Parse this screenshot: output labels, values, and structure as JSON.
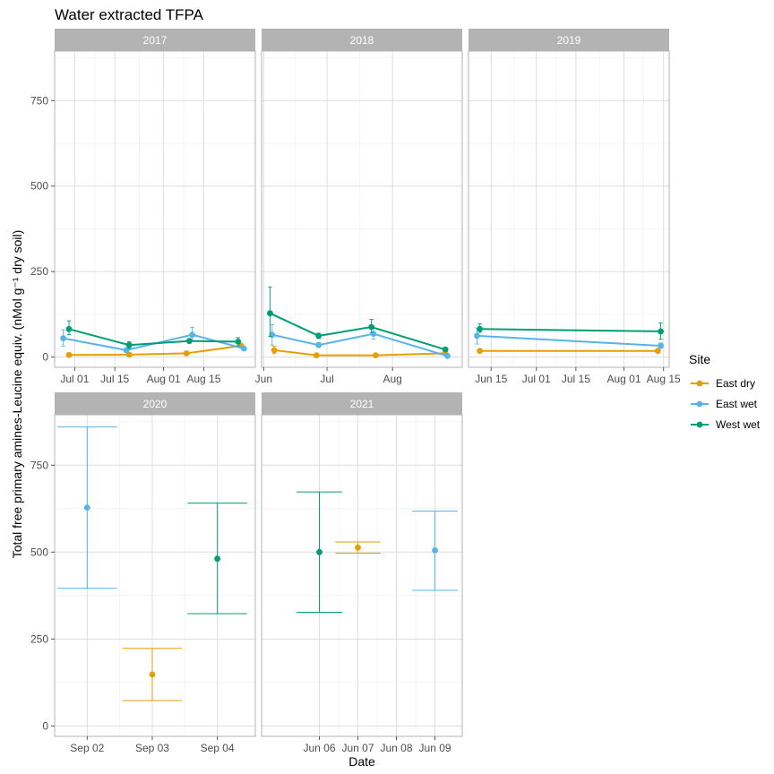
{
  "chart_data": {
    "type": "line",
    "title": "Water extracted TFPA",
    "xlabel": "Date",
    "ylabel": "Total free primary amines-Leucine equiv. (nMol g⁻¹ dry soil)",
    "ylim": [
      -30,
      895
    ],
    "yticks": [
      0,
      250,
      500,
      750
    ],
    "legend": {
      "title": "Site",
      "position": "right",
      "entries": [
        {
          "name": "East dry",
          "color": "#E69F00"
        },
        {
          "name": "East wet",
          "color": "#56B4E9"
        },
        {
          "name": "West wet",
          "color": "#009E73"
        }
      ]
    },
    "grid": true,
    "panels": [
      {
        "strip": "2017",
        "xrange": [
          "2017-06-24",
          "2017-09-02"
        ],
        "xticks": [
          {
            "label": "Jul 01",
            "date": "2017-07-01"
          },
          {
            "label": "Jul 15",
            "date": "2017-07-15"
          },
          {
            "label": "Aug 01",
            "date": "2017-08-01"
          },
          {
            "label": "Aug 15",
            "date": "2017-08-15"
          }
        ],
        "series": [
          {
            "name": "East dry",
            "points": [
              {
                "date": "2017-06-29",
                "y": 6,
                "lo": 4,
                "hi": 9
              },
              {
                "date": "2017-07-20",
                "y": 7,
                "lo": 5,
                "hi": 9
              },
              {
                "date": "2017-08-09",
                "y": 11,
                "lo": 8,
                "hi": 14
              },
              {
                "date": "2017-08-28",
                "y": 33,
                "lo": 28,
                "hi": 38
              }
            ]
          },
          {
            "name": "East wet",
            "points": [
              {
                "date": "2017-06-27",
                "y": 55,
                "lo": 32,
                "hi": 80
              },
              {
                "date": "2017-07-19",
                "y": 20,
                "lo": 14,
                "hi": 26
              },
              {
                "date": "2017-08-11",
                "y": 65,
                "lo": 48,
                "hi": 87
              },
              {
                "date": "2017-08-29",
                "y": 25,
                "lo": 20,
                "hi": 30
              }
            ]
          },
          {
            "name": "West wet",
            "points": [
              {
                "date": "2017-06-29",
                "y": 82,
                "lo": 66,
                "hi": 106
              },
              {
                "date": "2017-07-20",
                "y": 35,
                "lo": 25,
                "hi": 45
              },
              {
                "date": "2017-08-10",
                "y": 47,
                "lo": 40,
                "hi": 54
              },
              {
                "date": "2017-08-27",
                "y": 45,
                "lo": 33,
                "hi": 57
              }
            ]
          }
        ]
      },
      {
        "strip": "2018",
        "xrange": [
          "2018-05-31",
          "2018-09-03"
        ],
        "xticks": [
          {
            "label": "Jun",
            "date": "2018-06-01"
          },
          {
            "label": "Jul",
            "date": "2018-07-01"
          },
          {
            "label": "Aug",
            "date": "2018-08-01"
          }
        ],
        "series": [
          {
            "name": "East dry",
            "points": [
              {
                "date": "2018-06-06",
                "y": 20,
                "lo": 10,
                "hi": 32
              },
              {
                "date": "2018-06-26",
                "y": 5,
                "lo": 3,
                "hi": 7
              },
              {
                "date": "2018-07-24",
                "y": 5,
                "lo": 3,
                "hi": 7
              },
              {
                "date": "2018-08-26",
                "y": 11,
                "lo": 8,
                "hi": 14
              }
            ]
          },
          {
            "name": "East wet",
            "points": [
              {
                "date": "2018-06-05",
                "y": 65,
                "lo": 35,
                "hi": 95
              },
              {
                "date": "2018-06-27",
                "y": 35,
                "lo": 28,
                "hi": 42
              },
              {
                "date": "2018-07-23",
                "y": 68,
                "lo": 52,
                "hi": 85
              },
              {
                "date": "2018-08-27",
                "y": 3,
                "lo": 0,
                "hi": 6
              }
            ]
          },
          {
            "name": "West wet",
            "points": [
              {
                "date": "2018-06-04",
                "y": 128,
                "lo": 60,
                "hi": 205
              },
              {
                "date": "2018-06-27",
                "y": 62,
                "lo": 54,
                "hi": 70
              },
              {
                "date": "2018-07-22",
                "y": 88,
                "lo": 72,
                "hi": 110
              },
              {
                "date": "2018-08-26",
                "y": 22,
                "lo": 17,
                "hi": 27
              }
            ]
          }
        ]
      },
      {
        "strip": "2019",
        "xrange": [
          "2019-06-07",
          "2019-08-17"
        ],
        "xticks": [
          {
            "label": "Jun 15",
            "date": "2019-06-15"
          },
          {
            "label": "Jul 01",
            "date": "2019-07-01"
          },
          {
            "label": "Jul 15",
            "date": "2019-07-15"
          },
          {
            "label": "Aug 01",
            "date": "2019-08-01"
          },
          {
            "label": "Aug 15",
            "date": "2019-08-15"
          }
        ],
        "series": [
          {
            "name": "East dry",
            "points": [
              {
                "date": "2019-06-11",
                "y": 18,
                "lo": 14,
                "hi": 22
              },
              {
                "date": "2019-08-13",
                "y": 18,
                "lo": 14,
                "hi": 22
              }
            ]
          },
          {
            "name": "East wet",
            "points": [
              {
                "date": "2019-06-10",
                "y": 62,
                "lo": 38,
                "hi": 85
              },
              {
                "date": "2019-08-14",
                "y": 33,
                "lo": 25,
                "hi": 41
              }
            ]
          },
          {
            "name": "West wet",
            "points": [
              {
                "date": "2019-06-11",
                "y": 82,
                "lo": 72,
                "hi": 97
              },
              {
                "date": "2019-08-14",
                "y": 75,
                "lo": 52,
                "hi": 100
              }
            ]
          }
        ]
      },
      {
        "strip": "2020",
        "xrange": [
          "2020-09-01 12:00",
          "2020-09-04 14:00"
        ],
        "errorbar_style": "wide",
        "xticks": [
          {
            "label": "Sep 02",
            "date": "2020-09-02"
          },
          {
            "label": "Sep 03",
            "date": "2020-09-03"
          },
          {
            "label": "Sep 04",
            "date": "2020-09-04"
          }
        ],
        "series": [
          {
            "name": "East dry",
            "points": [
              {
                "date": "2020-09-03",
                "y": 148,
                "lo": 73,
                "hi": 223
              }
            ]
          },
          {
            "name": "East wet",
            "points": [
              {
                "date": "2020-09-02",
                "y": 628,
                "lo": 396,
                "hi": 860
              }
            ]
          },
          {
            "name": "West wet",
            "points": [
              {
                "date": "2020-09-04",
                "y": 481,
                "lo": 323,
                "hi": 641
              }
            ]
          }
        ]
      },
      {
        "strip": "2021",
        "xrange": [
          "2021-06-04 12:00",
          "2021-06-09 17:00"
        ],
        "errorbar_style": "wide",
        "xticks": [
          {
            "label": "Jun 06",
            "date": "2021-06-06"
          },
          {
            "label": "Jun 07",
            "date": "2021-06-07"
          },
          {
            "label": "Jun 08",
            "date": "2021-06-08"
          },
          {
            "label": "Jun 09",
            "date": "2021-06-09"
          }
        ],
        "series": [
          {
            "name": "East dry",
            "points": [
              {
                "date": "2021-06-07",
                "y": 513,
                "lo": 497,
                "hi": 529
              }
            ]
          },
          {
            "name": "East wet",
            "points": [
              {
                "date": "2021-06-09",
                "y": 505,
                "lo": 390,
                "hi": 618
              }
            ]
          },
          {
            "name": "West wet",
            "points": [
              {
                "date": "2021-06-06",
                "y": 500,
                "lo": 327,
                "hi": 673
              }
            ]
          }
        ]
      }
    ]
  }
}
